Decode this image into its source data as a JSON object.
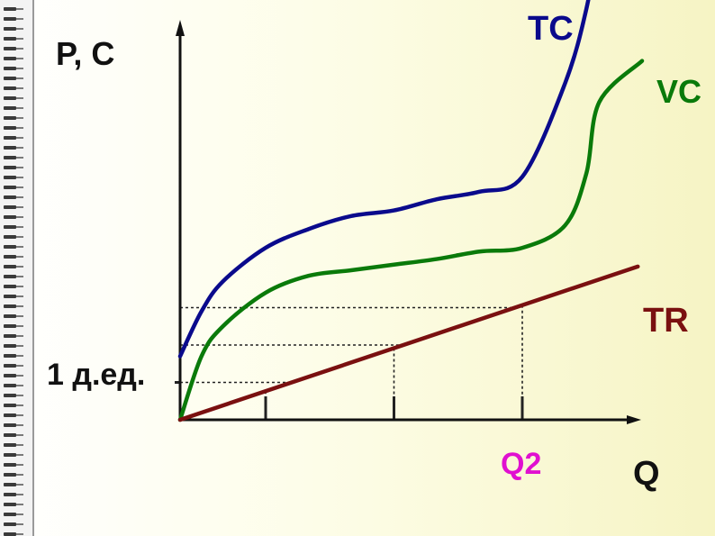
{
  "chart_data": {
    "type": "line",
    "title": "",
    "ylabel": "P, C",
    "xlabel": "Q",
    "unit_label": "1 д.ед.",
    "x_marker_label": "Q2",
    "xlim": [
      0,
      10
    ],
    "ylim": [
      0,
      13
    ],
    "grid": false,
    "legend": "inline labels at curve ends",
    "series": [
      {
        "name": "TC",
        "color": "#0a0a8c",
        "x": [
          0,
          0.5,
          1,
          2,
          3,
          4,
          5,
          6,
          7,
          8,
          9,
          9.5,
          9.8,
          10
        ],
        "y": [
          1.7,
          2.9,
          3.7,
          4.6,
          5.1,
          5.45,
          5.6,
          5.9,
          6.1,
          6.5,
          9.0,
          11.0,
          13.0,
          14.5
        ]
      },
      {
        "name": "VC",
        "color": "#0a7a0a",
        "x": [
          0,
          0.5,
          1,
          2,
          3,
          4,
          5,
          6,
          7,
          8,
          9,
          9.5,
          9.8,
          10.8
        ],
        "y": [
          0,
          1.7,
          2.5,
          3.4,
          3.85,
          4.0,
          4.15,
          4.3,
          4.5,
          4.6,
          5.2,
          6.6,
          8.5,
          9.6
        ]
      },
      {
        "name": "TR",
        "color": "#7a1010",
        "x": [
          0,
          10.7
        ],
        "y": [
          0,
          4.1
        ]
      }
    ],
    "reference_lines": {
      "horizontal_y": [
        1.0,
        2.0,
        3.0
      ],
      "vertical_x": [
        2.0,
        5.0,
        8.0
      ]
    }
  }
}
